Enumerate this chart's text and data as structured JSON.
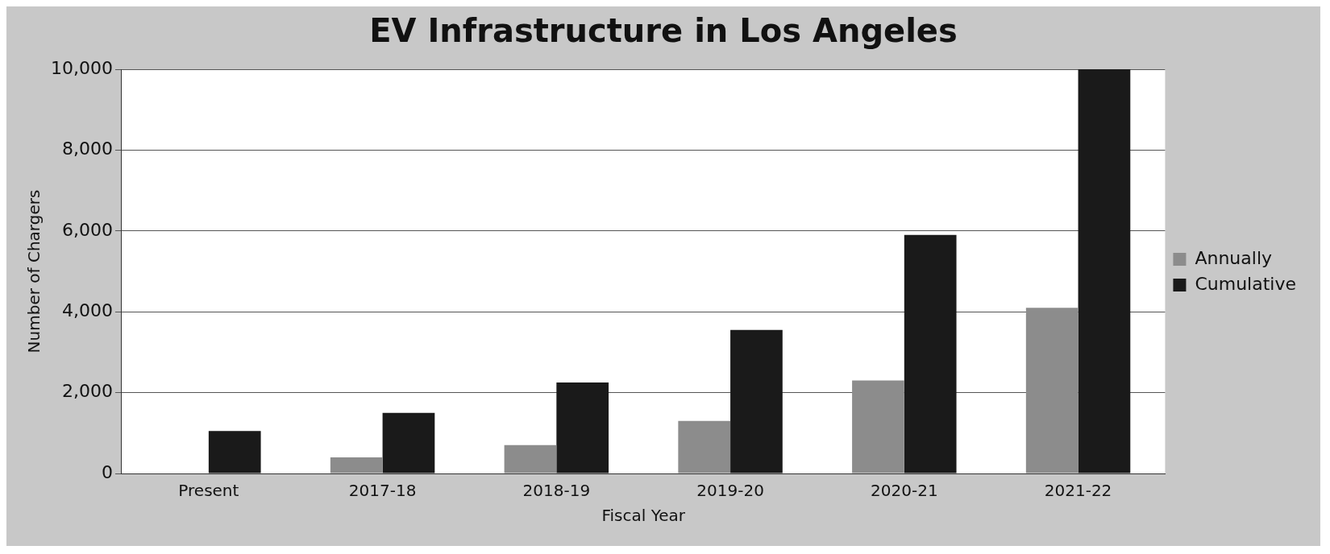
{
  "chart_data": {
    "type": "bar",
    "title": "EV Infrastructure in Los Angeles",
    "xlabel": "Fiscal Year",
    "ylabel": "Number of Chargers",
    "categories": [
      "Present",
      "2017-18",
      "2018-19",
      "2019-20",
      "2020-21",
      "2021-22"
    ],
    "series": [
      {
        "name": "Annually",
        "color": "#8c8c8c",
        "values": [
          0,
          400,
          700,
          1300,
          2300,
          4100
        ]
      },
      {
        "name": "Cumulative",
        "color": "#1a1a1a",
        "values": [
          1050,
          1500,
          2250,
          3550,
          5900,
          10000
        ]
      }
    ],
    "ylim": [
      0,
      10000
    ],
    "yticks": [
      {
        "value": 0,
        "label": "0"
      },
      {
        "value": 2000,
        "label": "2,000"
      },
      {
        "value": 4000,
        "label": "4,000"
      },
      {
        "value": 6000,
        "label": "6,000"
      },
      {
        "value": 8000,
        "label": "8,000"
      },
      {
        "value": 10000,
        "label": "10,000"
      }
    ],
    "grid": "y",
    "legend": "right"
  }
}
